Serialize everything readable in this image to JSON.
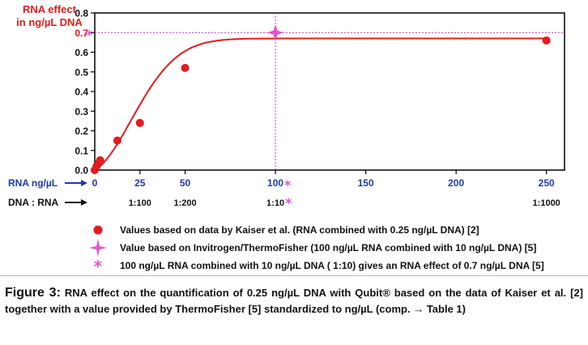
{
  "chart_data": {
    "type": "scatter",
    "ylabel": "RNA effect\nin ng/µL DNA",
    "xlabel": "RNA ng/µL",
    "x_row2_label": "DNA : RNA",
    "xlim": [
      0,
      260
    ],
    "ylim": [
      0,
      0.8
    ],
    "xticks": [
      0,
      25,
      50,
      100,
      150,
      200,
      250
    ],
    "xtick_labels": [
      "0",
      "25",
      "50",
      "100",
      "150",
      "200",
      "250"
    ],
    "yticks": [
      0.0,
      0.1,
      0.2,
      0.3,
      0.4,
      0.5,
      0.6,
      0.7,
      0.8
    ],
    "ytick_labels": [
      "0.0",
      "0.1",
      "0.2",
      "0.3",
      "0.4",
      "0.5",
      "0.6",
      "0.7",
      "0.8"
    ],
    "ratio_labels": [
      {
        "x": 25,
        "label": "1:100"
      },
      {
        "x": 50,
        "label": "1:200"
      },
      {
        "x": 100,
        "label": "1:10"
      },
      {
        "x": 250,
        "label": "1:1000"
      }
    ],
    "series": [
      {
        "name": "Values based on data by Kaiser et al. (RNA combined with 0.25 ng/µL DNA) [2]",
        "marker": "circle",
        "color": "#e41a1c",
        "points": [
          [
            0,
            0.0
          ],
          [
            1,
            0.02
          ],
          [
            2.5,
            0.04
          ],
          [
            3,
            0.05
          ],
          [
            12.5,
            0.15
          ],
          [
            25,
            0.24
          ],
          [
            50,
            0.52
          ],
          [
            250,
            0.66
          ]
        ]
      },
      {
        "name": "Value based on Invitrogen/ThermoFisher (100 ng/µL RNA combined with 10 ng/µL DNA) [5]",
        "marker": "star",
        "color": "#e056c8",
        "points": [
          [
            100,
            0.7
          ]
        ]
      }
    ],
    "fit_curve": {
      "color": "#e41a1c",
      "asymptote": 0.67,
      "midpoint": 30,
      "steepness": 0.045
    },
    "reference_lines": {
      "x": 100,
      "y": 0.7,
      "color": "#cc33cc"
    },
    "asterisk_note": "100 ng/µL RNA combined with 10 ng/µL DNA ( 1:10) gives an RNA effect of 0.7 ng/µL DNA [5]",
    "asterisk_color": "#e056c8",
    "asterisk_glyph": "*"
  },
  "caption": {
    "lead": "Figure 3:",
    "text": " RNA effect on the quantification of 0.25 ng/µL DNA with Qubit® based on the data of Kaiser et al. [2] together with a value provided by ThermoFisher [5] standardized to ng/µL (comp. → Table 1)"
  }
}
